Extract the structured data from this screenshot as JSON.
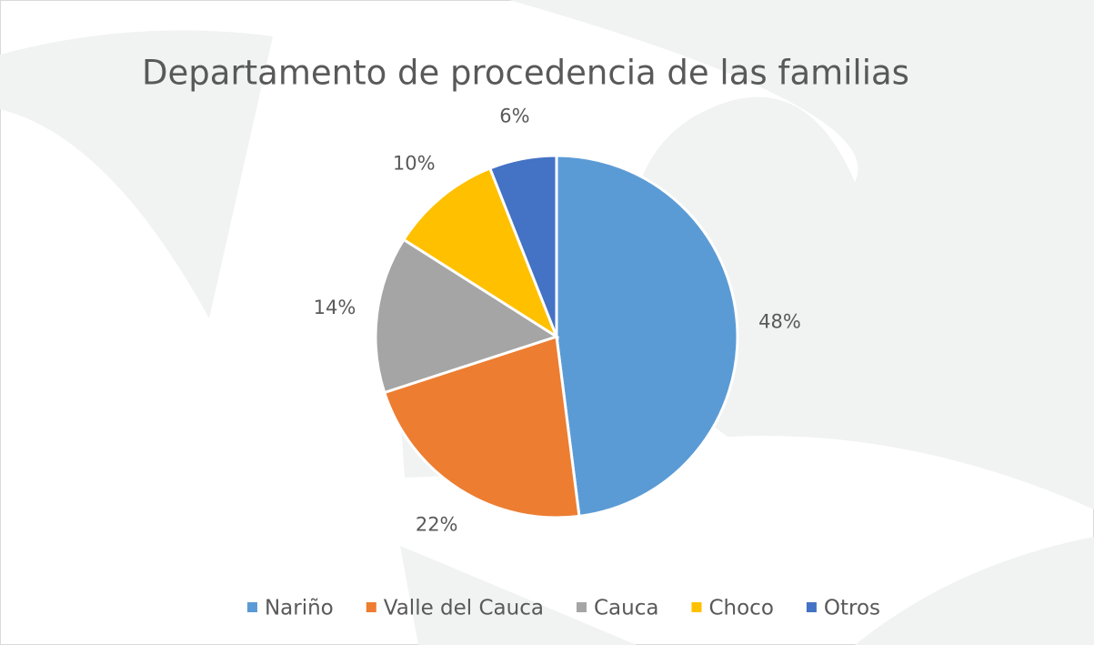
{
  "chart_data": {
    "type": "pie",
    "title": "Departamento de procedencia de las familias",
    "categories": [
      "Nariño",
      "Valle del Cauca",
      "Cauca",
      "Choco",
      "Otros"
    ],
    "values": [
      48,
      22,
      14,
      10,
      6
    ],
    "value_labels": [
      "48%",
      "22%",
      "14%",
      "10%",
      "6%"
    ],
    "colors": [
      "#5b9bd5",
      "#ed7d31",
      "#a5a5a5",
      "#ffc000",
      "#4472c4"
    ],
    "legend": "bottom"
  }
}
